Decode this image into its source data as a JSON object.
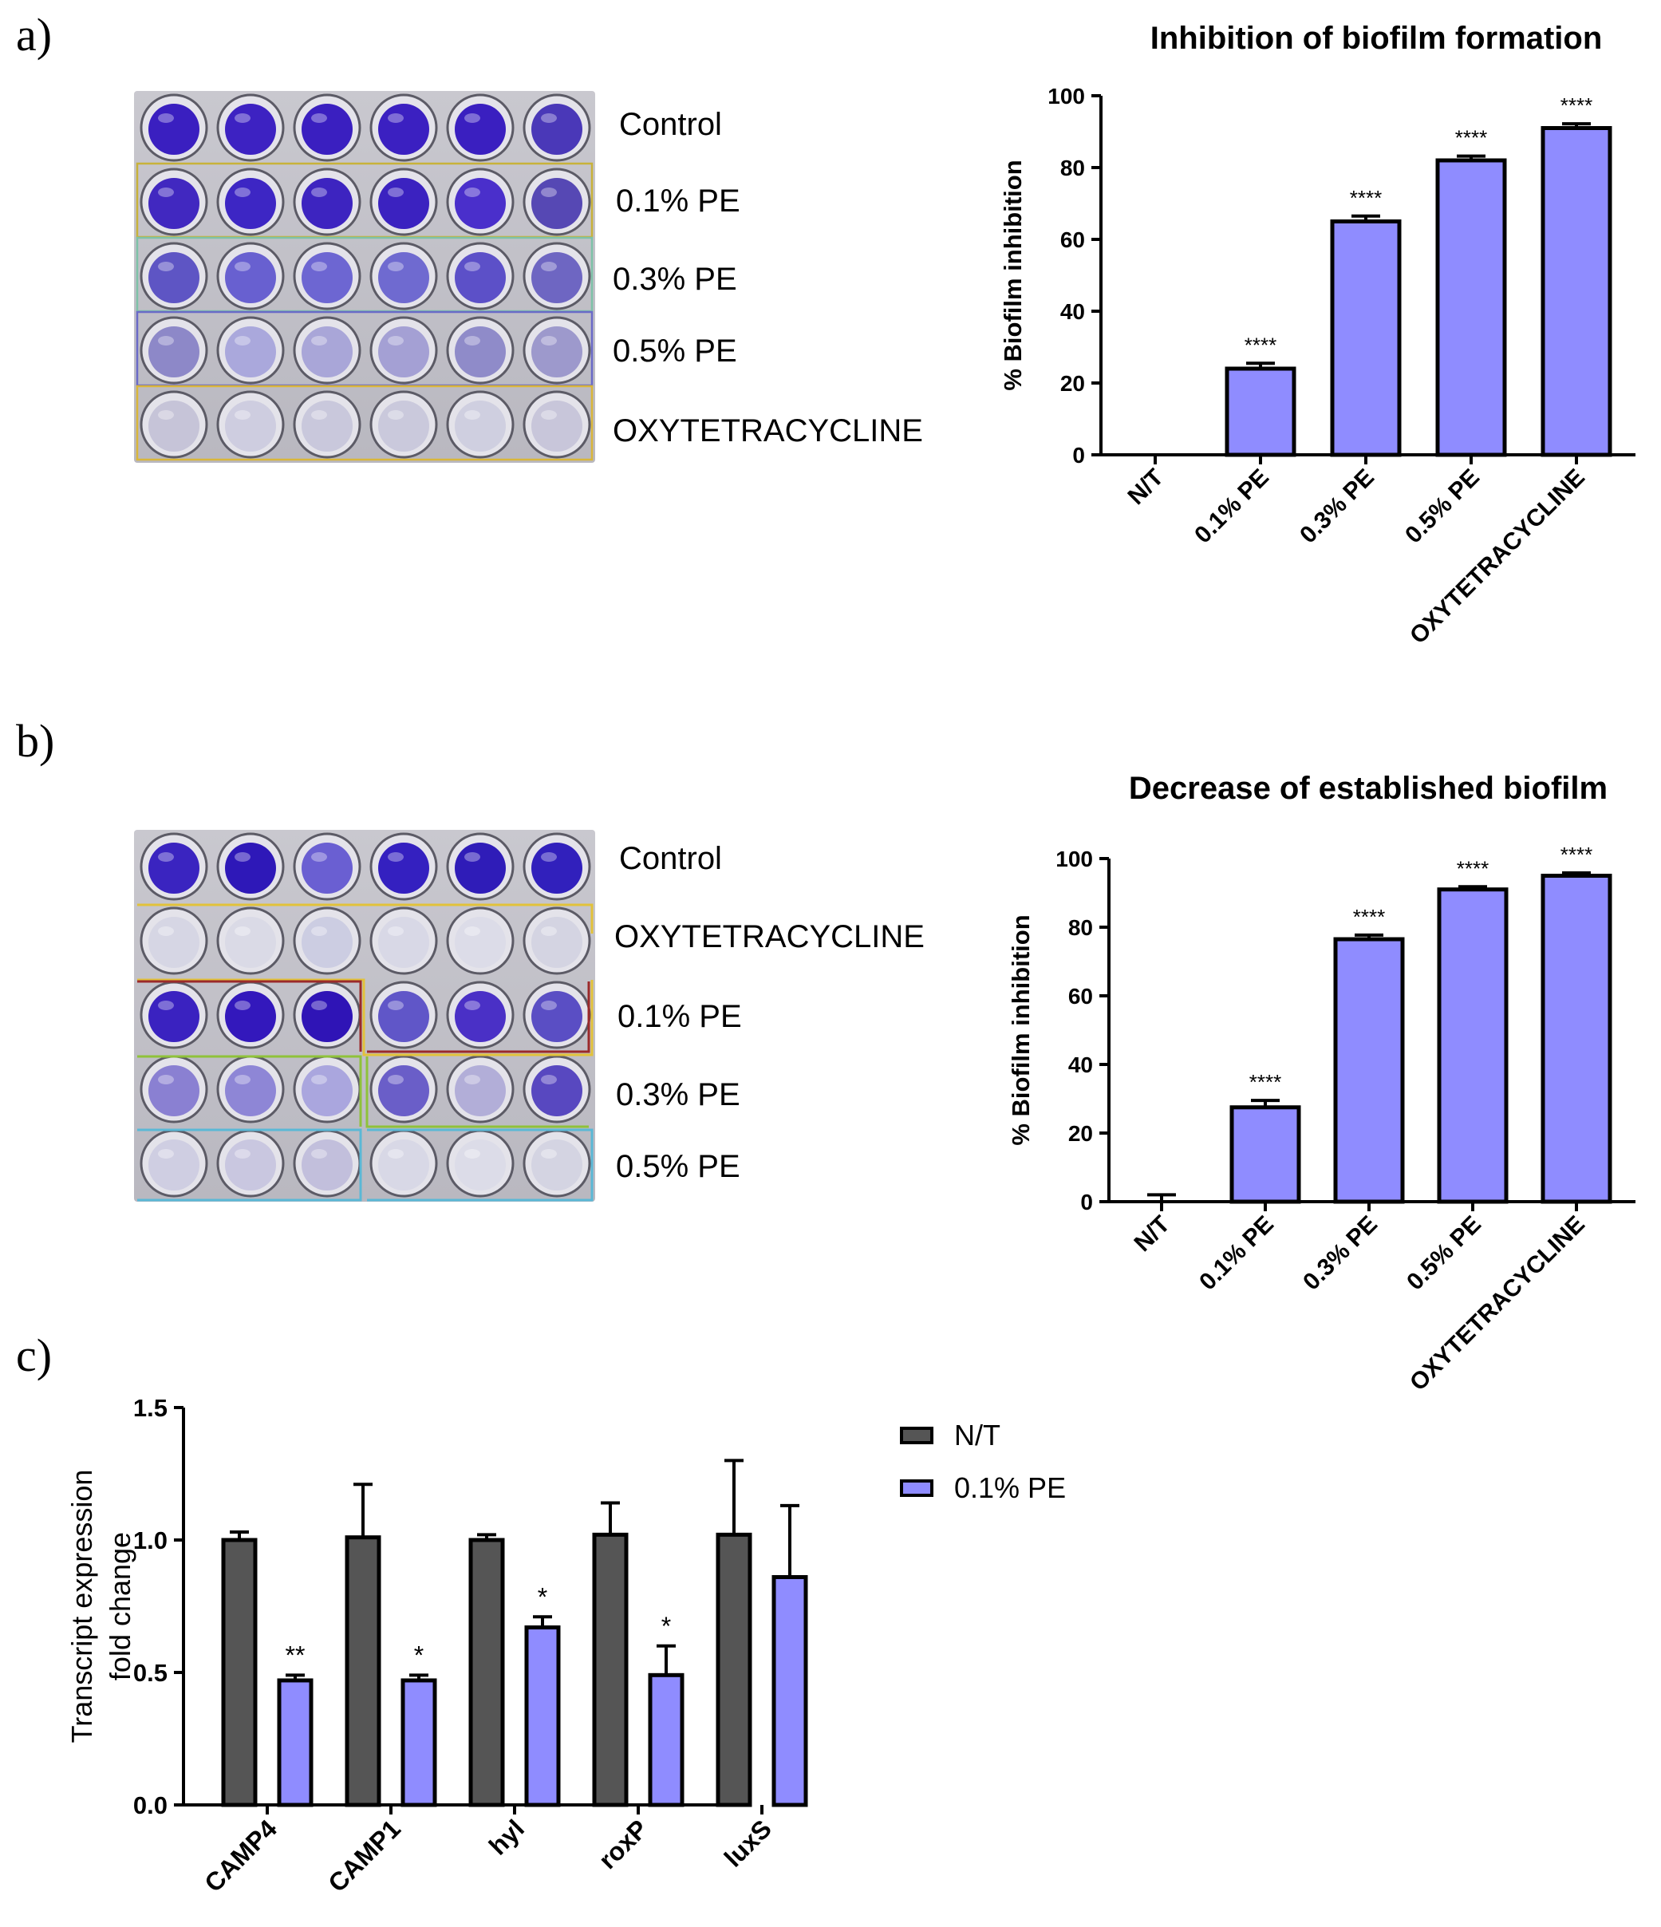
{
  "panels": {
    "a": {
      "letter": "a)"
    },
    "b": {
      "letter": "b)"
    },
    "c": {
      "letter": "c)"
    }
  },
  "plate_a": {
    "rows": [
      {
        "label": "Control",
        "wells": [
          "#3a1fc0",
          "#3d22c2",
          "#3a1fc0",
          "#3b20c1",
          "#3a1fc0",
          "#4a38b8"
        ],
        "frame": "#c0392b"
      },
      {
        "label": "0.1% PE",
        "wells": [
          "#4128c0",
          "#3d26c4",
          "#3d24c0",
          "#3b22c0",
          "#4a2fcb",
          "#5648b4"
        ],
        "frame": "#c8b23a"
      },
      {
        "label": "0.3% PE",
        "wells": [
          "#5e55c4",
          "#6860d0",
          "#6d66d2",
          "#6f6ad0",
          "#5c50c8",
          "#6e66c2"
        ],
        "frame": "#7ec2a8"
      },
      {
        "label": "0.5% PE",
        "wells": [
          "#8d88c8",
          "#aaa8dc",
          "#a9a6d8",
          "#a4a0d4",
          "#8f8bc9",
          "#9d99cc"
        ],
        "frame": "#6a6ac8"
      },
      {
        "label": "OXYTETRACYCLINE",
        "wells": [
          "#c6c4d8",
          "#cecde0",
          "#c9c8dc",
          "#cac9dc",
          "#cfcfe0",
          "#c8c6da"
        ],
        "frame": "#d9b63a"
      }
    ]
  },
  "plate_b": {
    "rows": [
      {
        "label": "Control",
        "wells": [
          "#3a24c0",
          "#2e18b8",
          "#6a5fd2",
          "#3420c0",
          "#2f1cb8",
          "#3120bc"
        ]
      },
      {
        "label": "OXYTETRACYCLINE",
        "wells": [
          "#d6d6e4",
          "#dadae6",
          "#cccde2",
          "#d8d8e6",
          "#dcdce8",
          "#d4d4e2"
        ]
      },
      {
        "label": "0.1% PE",
        "wells": [
          "#3a22c0",
          "#3318bc",
          "#2f14b6",
          "#6056c8",
          "#4a30c6",
          "#5a4ec4"
        ]
      },
      {
        "label": "0.3% PE",
        "wells": [
          "#8a80d2",
          "#8e86d6",
          "#aaa6de",
          "#6a5ec8",
          "#b2aed8",
          "#5848c0"
        ]
      },
      {
        "label": "0.5% PE",
        "wells": [
          "#cfcee2",
          "#c9c7e0",
          "#c2bfdc",
          "#d8d8e6",
          "#dcdce8",
          "#d4d4e2"
        ]
      }
    ]
  },
  "chart_data": [
    {
      "type": "bar",
      "title": "Inhibition of biofilm formation",
      "xlabel": "",
      "ylabel": "% Biofilm inhibition",
      "ylim": [
        0,
        100
      ],
      "yticks": [
        "0",
        "20",
        "40",
        "60",
        "80",
        "100"
      ],
      "categories": [
        "N/T",
        "0.1% PE",
        "0.3% PE",
        "0.5% PE",
        "OXYTETRACYCLINE"
      ],
      "values": [
        0,
        24,
        65,
        82,
        91
      ],
      "errors": [
        0,
        1.5,
        1.5,
        1.2,
        1.2
      ],
      "annotations": [
        "",
        "****",
        "****",
        "****",
        "****"
      ],
      "bar_color": "#8f8cff"
    },
    {
      "type": "bar",
      "title": "Decrease of established biofilm",
      "xlabel": "",
      "ylabel": "% Biofilm inhibition",
      "ylim": [
        0,
        100
      ],
      "yticks": [
        "0",
        "20",
        "40",
        "60",
        "80",
        "100"
      ],
      "categories": [
        "N/T",
        "0.1% PE",
        "0.3% PE",
        "0.5% PE",
        "OXYTETRACYCLINE"
      ],
      "values": [
        0,
        27.5,
        76.5,
        91,
        95
      ],
      "errors": [
        2,
        2,
        1.2,
        0.8,
        0.8
      ],
      "annotations": [
        "",
        "****",
        "****",
        "****",
        "****"
      ],
      "bar_color": "#8f8cff"
    },
    {
      "type": "bar",
      "title": "",
      "xlabel": "",
      "ylabel": "Transcript expression fold change",
      "ylabel_lines": [
        "Transcript expression",
        "fold change"
      ],
      "ylim": [
        0,
        1.5
      ],
      "yticks": [
        "0.0",
        "0.5",
        "1.0",
        "1.5"
      ],
      "categories": [
        "CAMP4",
        "CAMP1",
        "hyl",
        "roxP",
        "luxS"
      ],
      "series": [
        {
          "name": "N/T",
          "color": "#555555",
          "values": [
            1.0,
            1.01,
            1.0,
            1.02,
            1.02
          ],
          "errors": [
            0.03,
            0.2,
            0.02,
            0.12,
            0.28
          ],
          "annotations": [
            "",
            "",
            "",
            "",
            ""
          ]
        },
        {
          "name": "0.1% PE",
          "color": "#8f8cff",
          "values": [
            0.47,
            0.47,
            0.67,
            0.49,
            0.86
          ],
          "errors": [
            0.02,
            0.02,
            0.04,
            0.11,
            0.27
          ],
          "annotations": [
            "**",
            "*",
            "*",
            "*",
            ""
          ]
        }
      ],
      "legend": "top-right"
    }
  ]
}
